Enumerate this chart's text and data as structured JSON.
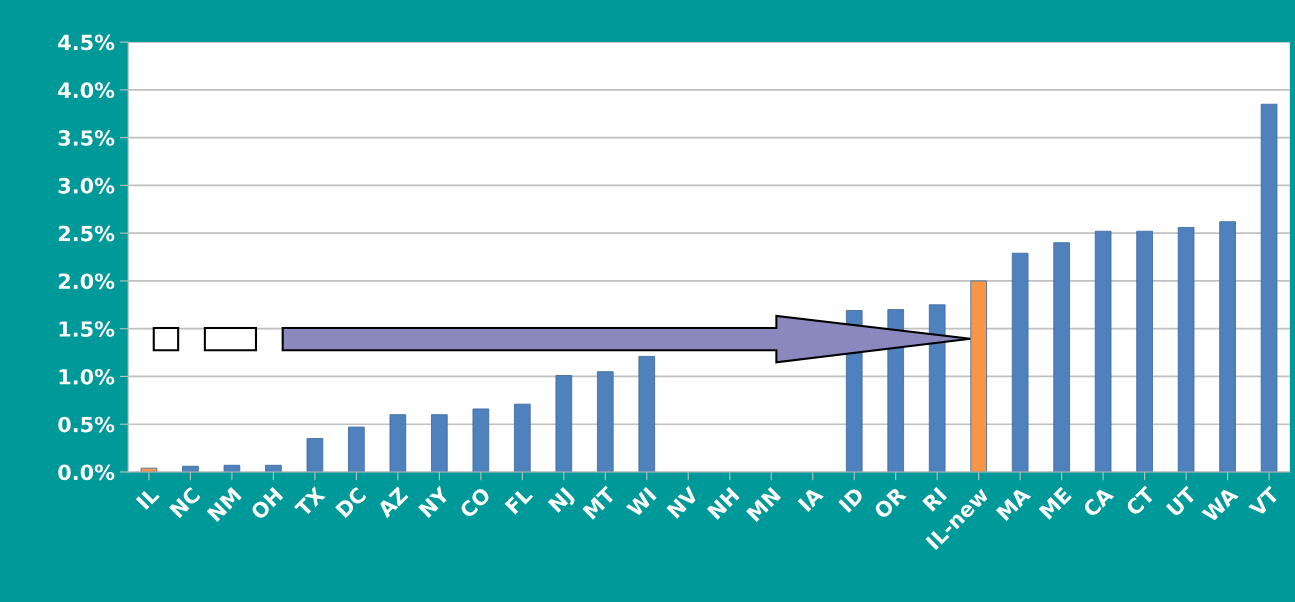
{
  "chart_data": {
    "type": "bar",
    "categories": [
      "IL",
      "NC",
      "NM",
      "OH",
      "TX",
      "DC",
      "AZ",
      "NY",
      "CO",
      "FL",
      "NJ",
      "MT",
      "WI",
      "NV",
      "NH",
      "MN",
      "IA",
      "ID",
      "OR",
      "RI",
      "IL-new",
      "MA",
      "ME",
      "CA",
      "CT",
      "UT",
      "WA",
      "VT"
    ],
    "values": [
      0.04,
      0.06,
      0.07,
      0.07,
      0.35,
      0.47,
      0.6,
      0.6,
      0.66,
      0.71,
      1.01,
      1.05,
      1.21,
      null,
      null,
      null,
      null,
      1.69,
      1.7,
      1.75,
      2.0,
      2.29,
      2.4,
      2.52,
      2.52,
      2.56,
      2.62,
      3.85
    ],
    "colors": [
      "#f79646",
      "#4f81bd",
      "#4f81bd",
      "#4f81bd",
      "#4f81bd",
      "#4f81bd",
      "#4f81bd",
      "#4f81bd",
      "#4f81bd",
      "#4f81bd",
      "#4f81bd",
      "#4f81bd",
      "#4f81bd",
      "#4f81bd",
      "#4f81bd",
      "#4f81bd",
      "#4f81bd",
      "#4f81bd",
      "#4f81bd",
      "#4f81bd",
      "#f79646",
      "#4f81bd",
      "#4f81bd",
      "#4f81bd",
      "#4f81bd",
      "#4f81bd",
      "#4f81bd",
      "#4f81bd"
    ],
    "ylim": [
      0,
      4.5
    ],
    "yticks": [
      {
        "value": 0,
        "label": "0.0%"
      },
      {
        "value": 0.5,
        "label": "0.5%"
      },
      {
        "value": 1,
        "label": "1.0%"
      },
      {
        "value": 1.5,
        "label": "1.5%"
      },
      {
        "value": 2,
        "label": "2.0%"
      },
      {
        "value": 2.5,
        "label": "2.5%"
      },
      {
        "value": 3,
        "label": "3.0%"
      },
      {
        "value": 3.5,
        "label": "3.5%"
      },
      {
        "value": 4,
        "label": "4.0%"
      },
      {
        "value": 4.5,
        "label": "4.5%"
      }
    ],
    "grid": "y"
  }
}
